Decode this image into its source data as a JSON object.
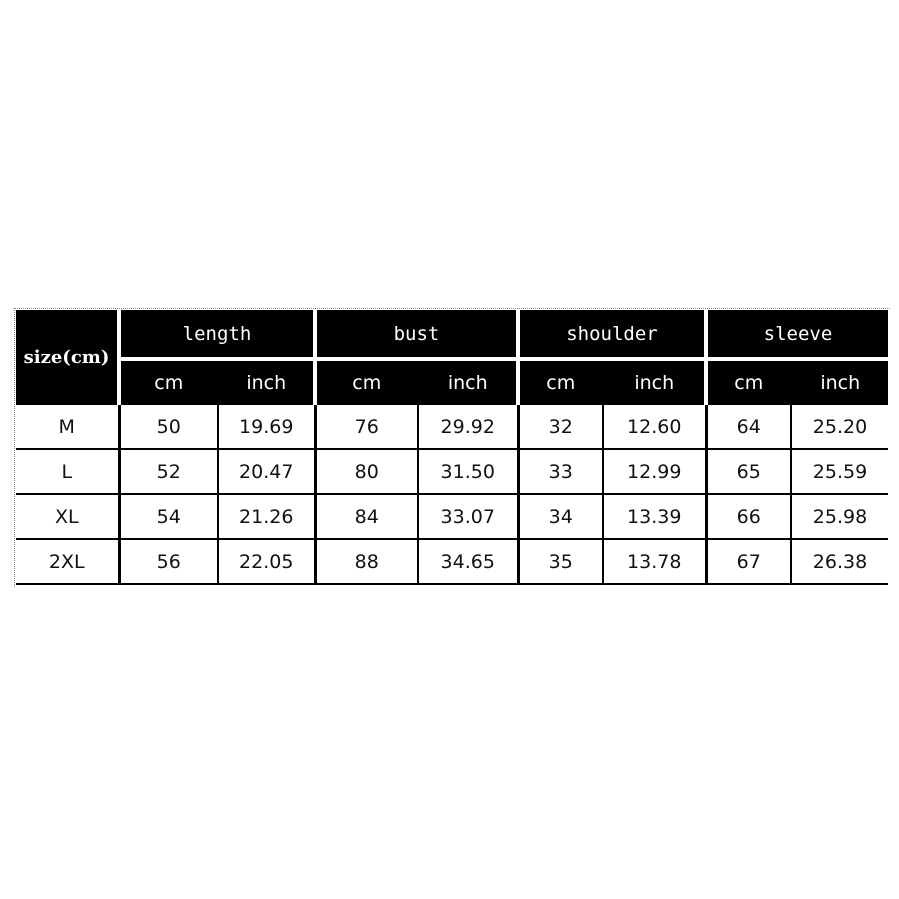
{
  "table": {
    "corner": "size(cm)",
    "groups": [
      "length",
      "bust",
      "shoulder",
      "sleeve"
    ],
    "units": [
      "cm",
      "inch"
    ],
    "rows": [
      {
        "size": "M",
        "values": [
          "50",
          "19.69",
          "76",
          "29.92",
          "32",
          "12.60",
          "64",
          "25.20"
        ]
      },
      {
        "size": "L",
        "values": [
          "52",
          "20.47",
          "80",
          "31.50",
          "33",
          "12.99",
          "65",
          "25.59"
        ]
      },
      {
        "size": "XL",
        "values": [
          "54",
          "21.26",
          "84",
          "33.07",
          "34",
          "13.39",
          "66",
          "25.98"
        ]
      },
      {
        "size": "2XL",
        "values": [
          "56",
          "22.05",
          "88",
          "34.65",
          "35",
          "13.78",
          "67",
          "26.38"
        ]
      }
    ]
  }
}
